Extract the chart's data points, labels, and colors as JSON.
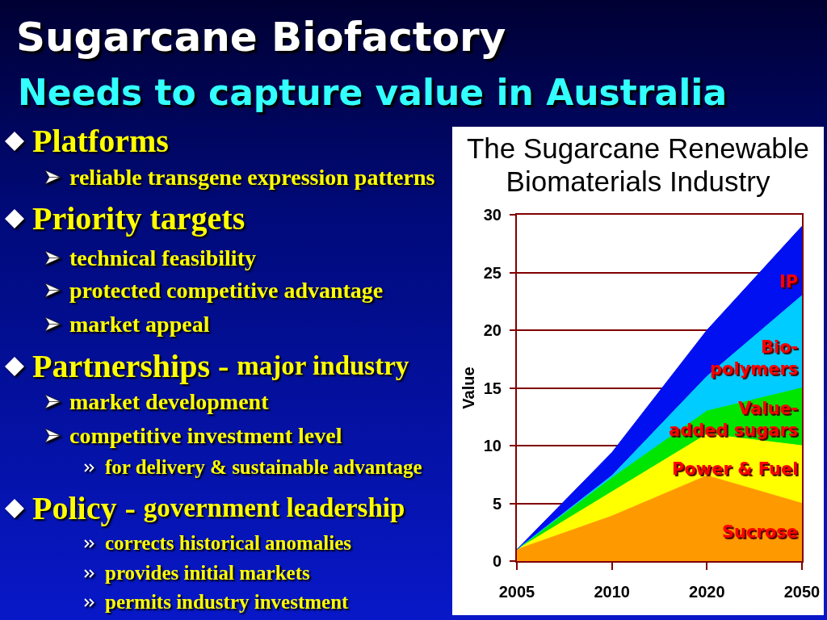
{
  "chart_data": {
    "type": "area",
    "title": "Sugarcane Biofactory",
    "subtitle": "Needs to capture value in Australia",
    "ylabel": "Value",
    "categories": [
      "2005",
      "2010",
      "2020",
      "2050"
    ],
    "stacked": true,
    "series": [
      {
        "name": "Sucrose",
        "color": "#ff9900",
        "values": [
          1,
          3.9,
          7.4,
          5
        ]
      },
      {
        "name": "Power & Fuel",
        "color": "#ffff00",
        "values": [
          0,
          2.1,
          3.6,
          5
        ]
      },
      {
        "name": "Value-added sugars",
        "color": "#00e600",
        "values": [
          0,
          1.2,
          2,
          5
        ]
      },
      {
        "name": "Bio-polymers",
        "color": "#00ccff",
        "values": [
          0,
          0.2,
          3,
          8
        ]
      },
      {
        "name": "IP",
        "color": "#0010f0",
        "values": [
          0,
          2,
          4,
          6
        ]
      }
    ],
    "ylim": [
      0,
      30
    ],
    "yticks": [
      0,
      5,
      10,
      15,
      20,
      25,
      30
    ],
    "grid": "y",
    "annotations": [
      "The Sugarcane Renewable Biomaterials Industry",
      "Platforms",
      "reliable transgene expression patterns",
      "Priority targets",
      "technical feasibility",
      "protected competitive advantage",
      "market appeal",
      "Partnerships -",
      "major industry",
      "market development",
      "competitive investment level",
      "for delivery & sustainable advantage",
      "Policy -",
      "government leadership",
      "corrects historical anomalies",
      "provides initial markets",
      "permits industry investment"
    ]
  }
}
